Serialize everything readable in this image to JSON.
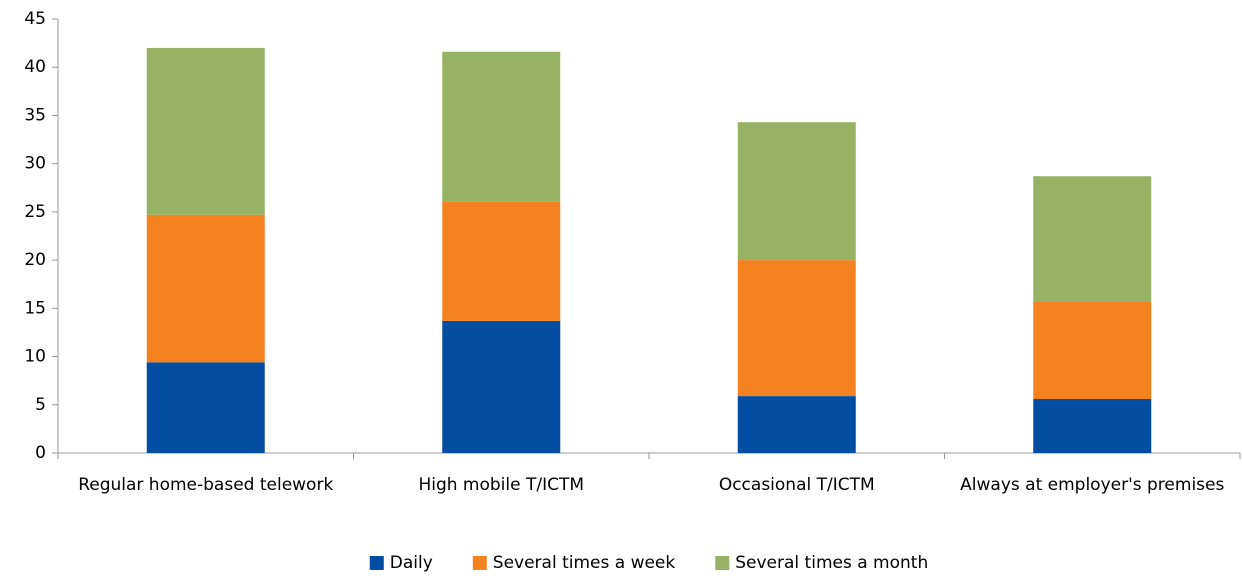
{
  "chart_data": {
    "type": "stacked_bar",
    "categories": [
      "Regular home-based telework",
      "High mobile T/ICTM",
      "Occasional T/ICTM",
      "Always at employer's premises"
    ],
    "series": [
      {
        "name": "Daily",
        "color": "#034ea2",
        "values": [
          9.4,
          13.7,
          5.9,
          5.6
        ]
      },
      {
        "name": "Several times a week",
        "color": "#f58220",
        "values": [
          15.3,
          12.4,
          14.1,
          10.1
        ]
      },
      {
        "name": "Several times a month",
        "color": "#97b265",
        "values": [
          17.3,
          15.5,
          14.3,
          13.0
        ]
      }
    ],
    "ylim": [
      0,
      45
    ],
    "yticks": [
      0,
      5,
      10,
      15,
      20,
      25,
      30,
      35,
      40,
      45
    ],
    "grid": false,
    "legend": "bottom"
  }
}
